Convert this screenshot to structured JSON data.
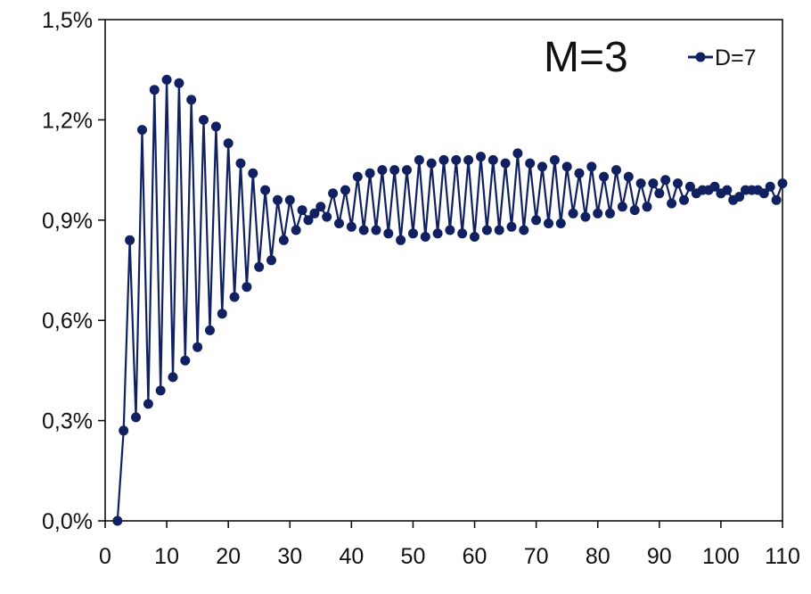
{
  "chart_data": {
    "type": "line",
    "title": "",
    "xlabel": "",
    "ylabel": "",
    "xlim": [
      0,
      110
    ],
    "ylim": [
      0,
      1.5
    ],
    "x_ticks": [
      0,
      10,
      20,
      30,
      40,
      50,
      60,
      70,
      80,
      90,
      100,
      110
    ],
    "x_tick_labels": [
      "0",
      "10",
      "20",
      "30",
      "40",
      "50",
      "60",
      "70",
      "80",
      "90",
      "100",
      "110"
    ],
    "y_ticks": [
      0,
      0.3,
      0.6,
      0.9,
      1.2,
      1.5
    ],
    "y_tick_labels": [
      "0,0%",
      "0,3%",
      "0,6%",
      "0,9%",
      "1,2%",
      "1,5%"
    ],
    "grid": false,
    "legend_position": "top-right",
    "annotation": "M=3",
    "series_color": "#102060",
    "series": [
      {
        "name": "D=7",
        "x": [
          2,
          3,
          4,
          5,
          6,
          7,
          8,
          9,
          10,
          11,
          12,
          13,
          14,
          15,
          16,
          17,
          18,
          19,
          20,
          21,
          22,
          23,
          24,
          25,
          26,
          27,
          28,
          29,
          30,
          31,
          32,
          33,
          34,
          35,
          36,
          37,
          38,
          39,
          40,
          41,
          42,
          43,
          44,
          45,
          46,
          47,
          48,
          49,
          50,
          51,
          52,
          53,
          54,
          55,
          56,
          57,
          58,
          59,
          60,
          61,
          62,
          63,
          64,
          65,
          66,
          67,
          68,
          69,
          70,
          71,
          72,
          73,
          74,
          75,
          76,
          77,
          78,
          79,
          80,
          81,
          82,
          83,
          84,
          85,
          86,
          87,
          88,
          89,
          90,
          91,
          92,
          93,
          94,
          95,
          96,
          97,
          98,
          99,
          100,
          101,
          102,
          103,
          104,
          105,
          106,
          107,
          108,
          109,
          110
        ],
        "values": [
          0.0,
          0.27,
          0.84,
          0.31,
          1.17,
          0.35,
          1.29,
          0.39,
          1.32,
          0.43,
          1.31,
          0.48,
          1.26,
          0.52,
          1.2,
          0.57,
          1.18,
          0.62,
          1.13,
          0.67,
          1.07,
          0.7,
          1.04,
          0.76,
          0.99,
          0.78,
          0.96,
          0.84,
          0.96,
          0.87,
          0.93,
          0.9,
          0.92,
          0.94,
          0.91,
          0.98,
          0.89,
          0.99,
          0.88,
          1.03,
          0.87,
          1.04,
          0.87,
          1.05,
          0.86,
          1.05,
          0.84,
          1.05,
          0.86,
          1.08,
          0.85,
          1.07,
          0.86,
          1.08,
          0.87,
          1.08,
          0.86,
          1.08,
          0.85,
          1.09,
          0.87,
          1.08,
          0.87,
          1.07,
          0.88,
          1.1,
          0.87,
          1.07,
          0.9,
          1.06,
          0.89,
          1.08,
          0.89,
          1.06,
          0.92,
          1.04,
          0.91,
          1.06,
          0.92,
          1.03,
          0.92,
          1.05,
          0.94,
          1.03,
          0.93,
          1.01,
          0.94,
          1.01,
          0.98,
          1.02,
          0.95,
          1.01,
          0.96,
          1.0,
          0.98,
          0.99,
          0.99,
          1.0,
          0.98,
          0.99,
          0.96,
          0.97,
          0.99,
          0.99,
          0.99,
          0.98,
          1.0,
          0.96,
          1.01
        ]
      }
    ]
  }
}
